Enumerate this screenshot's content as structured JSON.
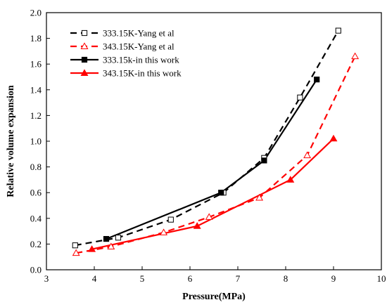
{
  "chart_data": {
    "type": "line",
    "title": "",
    "xlabel": "Pressure(MPa)",
    "ylabel": "Relative volume expansion",
    "xlim": [
      3,
      10
    ],
    "ylim": [
      0.0,
      2.0
    ],
    "xticks": [
      "3",
      "4",
      "5",
      "6",
      "7",
      "8",
      "9",
      "10"
    ],
    "yticks": [
      "0.0",
      "0.2",
      "0.4",
      "0.6",
      "0.8",
      "1.0",
      "1.2",
      "1.4",
      "1.6",
      "1.8",
      "2.0"
    ],
    "grid": false,
    "legend_position": "top-left",
    "series": [
      {
        "name": "333.15K-Yang et al",
        "color": "#000000",
        "line": "dashed",
        "marker": "open-square",
        "x": [
          3.6,
          4.5,
          5.6,
          6.7,
          7.55,
          8.3,
          9.1
        ],
        "y": [
          0.19,
          0.25,
          0.39,
          0.6,
          0.87,
          1.34,
          1.86
        ]
      },
      {
        "name": "343.15K-Yang et al",
        "color": "#ff0000",
        "line": "dashed",
        "marker": "open-triangle",
        "x": [
          3.62,
          4.35,
          5.45,
          6.4,
          7.45,
          8.45,
          9.45
        ],
        "y": [
          0.13,
          0.18,
          0.29,
          0.41,
          0.56,
          0.89,
          1.66
        ]
      },
      {
        "name": "333.15k-in this work",
        "color": "#000000",
        "line": "solid",
        "marker": "filled-square",
        "x": [
          4.25,
          6.65,
          7.55,
          8.65
        ],
        "y": [
          0.24,
          0.6,
          0.85,
          1.48
        ]
      },
      {
        "name": "343.15K-in this work",
        "color": "#ff0000",
        "line": "solid",
        "marker": "filled-triangle",
        "x": [
          3.95,
          6.15,
          8.1,
          9.0
        ],
        "y": [
          0.16,
          0.34,
          0.7,
          1.02
        ]
      }
    ]
  }
}
